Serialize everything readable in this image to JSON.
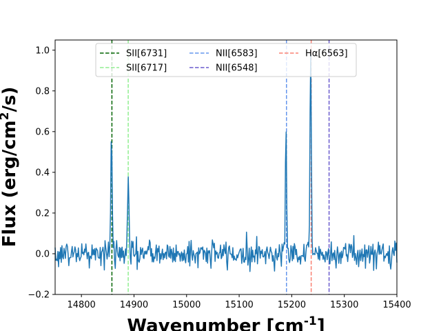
{
  "chart_data": {
    "type": "line",
    "title": "",
    "xlabel": "Wavenumber [cm$^{-1}$]",
    "ylabel": "Flux (erg/cm$^{2}$/s)",
    "xlim": [
      14750,
      15400
    ],
    "ylim": [
      -0.2,
      1.05
    ],
    "x_ticks": [
      14800,
      14900,
      15000,
      15100,
      15200,
      15300,
      15400
    ],
    "x_tick_labels": [
      "14800",
      "14900",
      "15000",
      "15100",
      "15200",
      "15300",
      "15400"
    ],
    "y_ticks": [
      -0.2,
      0.0,
      0.2,
      0.4,
      0.6,
      0.8,
      1.0
    ],
    "y_tick_labels": [
      "−0.2",
      "0.0",
      "0.2",
      "0.4",
      "0.6",
      "0.8",
      "1.0"
    ],
    "grid": false,
    "legend_position": "top-center",
    "legend_columns": 3,
    "series": [
      {
        "color": "#1f77b4",
        "noise_amplitude": 0.06,
        "peaks": [
          {
            "x": 14857,
            "y": 0.58
          },
          {
            "x": 14889,
            "y": 0.42
          },
          {
            "x": 15189,
            "y": 0.59
          },
          {
            "x": 15236,
            "y": 0.98
          }
        ]
      }
    ],
    "reference_lines": [
      {
        "label": "SII[6731]",
        "x": 14858,
        "color": "#006400"
      },
      {
        "label": "SII[6717]",
        "x": 14889,
        "color": "#90ee90"
      },
      {
        "label": "NII[6583]",
        "x": 15190,
        "color": "#6495ed"
      },
      {
        "label": "NII[6548]",
        "x": 15271,
        "color": "#6a5acd"
      },
      {
        "label": "Hα[6563]",
        "x": 15237,
        "color": "#fa8072"
      }
    ]
  }
}
